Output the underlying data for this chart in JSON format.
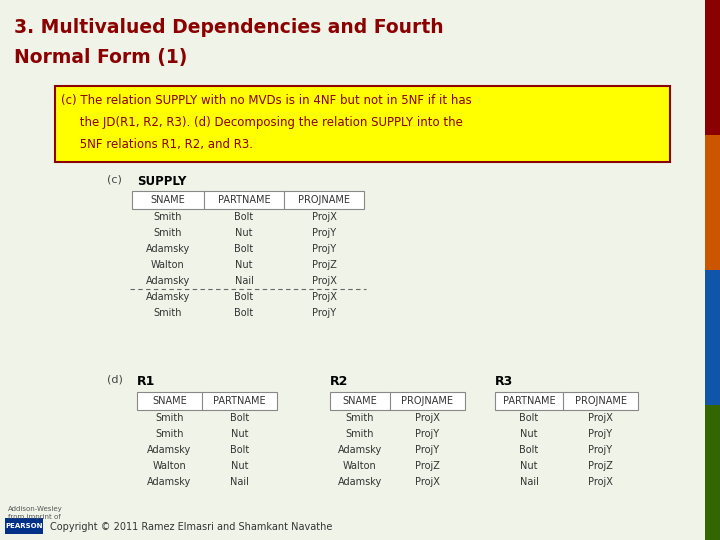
{
  "title_line1": "3. Multivalued Dependencies and Fourth",
  "title_line2": "Normal Form (1)",
  "title_color": "#8B0000",
  "bg_color": "#F0F4E8",
  "highlight_box_color": "#FFFF00",
  "highlight_border_color": "#8B0000",
  "highlight_text_lines": [
    "(c) The relation SUPPLY with no MVDs is in 4NF but not in 5NF if it has",
    "     the JD(R1, R2, R3). (d) Decomposing the relation SUPPLY into the",
    "     5NF relations R1, R2, and R3."
  ],
  "highlight_text_color": "#8B0000",
  "supply_label": "SUPPLY",
  "supply_cols": [
    "SNAME",
    "PARTNAME",
    "PROJNAME"
  ],
  "supply_rows": [
    [
      "Smith",
      "Bolt",
      "ProjX"
    ],
    [
      "Smith",
      "Nut",
      "ProjY"
    ],
    [
      "Adamsky",
      "Bolt",
      "ProjY"
    ],
    [
      "Walton",
      "Nut",
      "ProjZ"
    ],
    [
      "Adamsky",
      "Nail",
      "ProjX"
    ],
    [
      "Adamsky",
      "Bolt",
      "ProjX"
    ],
    [
      "Smith",
      "Bolt",
      "ProjY"
    ]
  ],
  "dashed_row_after": 5,
  "r1_label": "R1",
  "r1_cols": [
    "SNAME",
    "PARTNAME"
  ],
  "r1_rows": [
    [
      "Smith",
      "Bolt"
    ],
    [
      "Smith",
      "Nut"
    ],
    [
      "Adamsky",
      "Bolt"
    ],
    [
      "Walton",
      "Nut"
    ],
    [
      "Adamsky",
      "Nail"
    ]
  ],
  "r2_label": "R2",
  "r2_cols": [
    "SNAME",
    "PROJNAME"
  ],
  "r2_rows": [
    [
      "Smith",
      "ProjX"
    ],
    [
      "Smith",
      "ProjY"
    ],
    [
      "Adamsky",
      "ProjY"
    ],
    [
      "Walton",
      "ProjZ"
    ],
    [
      "Adamsky",
      "ProjX"
    ]
  ],
  "r3_label": "R3",
  "r3_cols": [
    "PARTNAME",
    "PROJNAME"
  ],
  "r3_rows": [
    [
      "Bolt",
      "ProjX"
    ],
    [
      "Nut",
      "ProjY"
    ],
    [
      "Bolt",
      "ProjY"
    ],
    [
      "Nut",
      "ProjZ"
    ],
    [
      "Nail",
      "ProjX"
    ]
  ],
  "label_color": "#444444",
  "bold_label_color": "#000000",
  "table_text_color": "#333333",
  "footer_text": "Copyright © 2011 Ramez Elmasri and Shamkant Navathe",
  "footer_color": "#333333",
  "section_c_label": "(c)",
  "section_d_label": "(d)",
  "bar_colors": [
    "#8B0000",
    "#CC5500",
    "#1155AA",
    "#336600"
  ],
  "pearson_color": "#003087",
  "addisonwesley_text": "Addison-Wesley\nfrom imprint of"
}
